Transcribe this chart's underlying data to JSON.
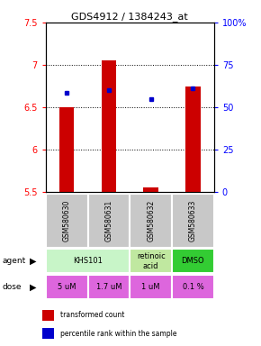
{
  "title": "GDS4912 / 1384243_at",
  "samples": [
    "GSM580630",
    "GSM580631",
    "GSM580632",
    "GSM580633"
  ],
  "bar_bottoms": [
    5.5,
    5.5,
    5.5,
    5.5
  ],
  "bar_tops": [
    6.5,
    7.05,
    5.55,
    6.75
  ],
  "percentile_values": [
    6.67,
    6.7,
    6.6,
    6.72
  ],
  "ylim": [
    5.5,
    7.5
  ],
  "yticks_left": [
    5.5,
    6.0,
    6.5,
    7.0,
    7.5
  ],
  "yticks_right": [
    0,
    25,
    50,
    75,
    100
  ],
  "ytick_labels_left": [
    "5.5",
    "6",
    "6.5",
    "7",
    "7.5"
  ],
  "ytick_labels_right": [
    "0",
    "25",
    "50",
    "75",
    "100%"
  ],
  "bar_color": "#cc0000",
  "dot_color": "#0000cc",
  "agent_data": [
    {
      "cols": [
        0,
        1
      ],
      "label": "KHS101",
      "color": "#c8f5c8"
    },
    {
      "cols": [
        2,
        2
      ],
      "label": "retinoic\nacid",
      "color": "#c0e8a0"
    },
    {
      "cols": [
        3,
        3
      ],
      "label": "DMSO",
      "color": "#33cc33"
    }
  ],
  "dose_labels": [
    "5 uM",
    "1.7 uM",
    "1 uM",
    "0.1 %"
  ],
  "dose_color": "#dd66dd",
  "sample_bg": "#c8c8c8"
}
